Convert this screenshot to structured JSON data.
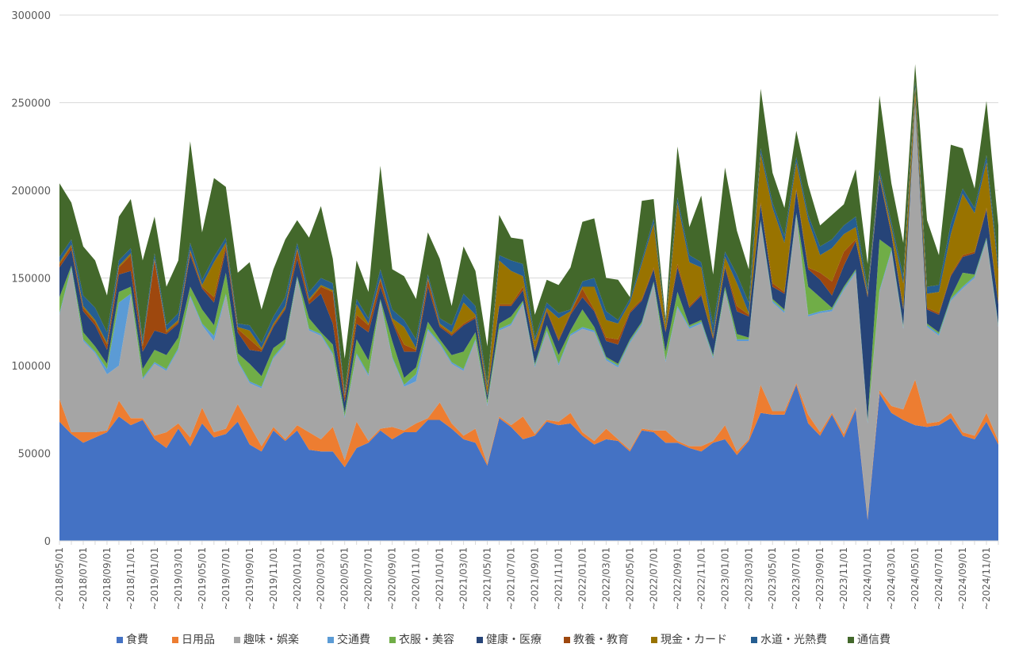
{
  "chart_data": {
    "type": "area",
    "stacked": true,
    "ylim": [
      0,
      300000
    ],
    "yticks": [
      "0",
      "50000",
      "100000",
      "150000",
      "200000",
      "250000",
      "300000"
    ],
    "xtick_labels": [
      "2018/05/01",
      "2018/07/01",
      "2018/09/01",
      "2018/11/01",
      "2019/01/01",
      "2019/03/01",
      "2019/05/01",
      "2019/07/01",
      "2019/09/01",
      "2019/11/01",
      "2020/01/01",
      "2020/03/01",
      "2020/05/01",
      "2020/07/01",
      "2020/09/01",
      "2020/11/01",
      "2021/01/01",
      "2021/03/01",
      "2021/05/01",
      "2021/07/01",
      "2021/09/01",
      "2021/11/01",
      "2022/01/01",
      "2022/03/01",
      "2022/05/01",
      "2022/07/01",
      "2022/09/01",
      "2022/11/01",
      "2023/01/01",
      "2023/03/01",
      "2023/05/01",
      "2023/07/01",
      "2023/09/01",
      "2023/11/01",
      "2024/01/01",
      "2024/03/01",
      "2024/05/01",
      "2024/07/01",
      "2024/09/01",
      "2024/11/01"
    ],
    "xtick_suffix": "~",
    "grid": true,
    "legend_position": "bottom",
    "series": [
      {
        "name": "食費",
        "color": "#4472C4",
        "values": [
          68000,
          61000,
          56000,
          59000,
          62000,
          71000,
          66000,
          69000,
          58000,
          53000,
          64000,
          54000,
          67000,
          59000,
          61000,
          68000,
          55000,
          51000,
          63000,
          57000,
          63000,
          52000,
          51000,
          51000,
          42000,
          53000,
          56000,
          63000,
          58000,
          62000,
          62000,
          69000,
          69000,
          64000,
          58000,
          56000,
          43000,
          70000,
          65000,
          58000,
          60000,
          68000,
          66000,
          67000,
          60000,
          55000,
          58000,
          57000,
          51000,
          63000,
          62000,
          56000,
          56000,
          53000,
          51000,
          56000,
          58000,
          49000,
          57000,
          73000,
          72000,
          72000,
          89000,
          67000,
          60000,
          72000,
          59000,
          75000,
          12000,
          84000,
          73000,
          69000,
          66000,
          65000,
          66000,
          70000,
          60000,
          58000,
          68000,
          55000
        ]
      },
      {
        "name": "日用品",
        "color": "#ED7D31",
        "values": [
          13000,
          1000,
          6000,
          3000,
          1000,
          9000,
          4000,
          1000,
          2000,
          9000,
          3000,
          5000,
          9000,
          3000,
          3000,
          10000,
          11000,
          3000,
          2000,
          1000,
          3000,
          10000,
          7000,
          14000,
          4000,
          15000,
          1000,
          1000,
          7000,
          1000,
          5000,
          1000,
          10000,
          3000,
          2000,
          8000,
          1000,
          1000,
          1000,
          13000,
          1000,
          1000,
          2000,
          6000,
          2000,
          2000,
          6000,
          1000,
          1000,
          1000,
          1000,
          7000,
          1000,
          1000,
          3000,
          1000,
          8000,
          2000,
          1000,
          16000,
          2000,
          2000,
          1000,
          5000,
          2000,
          1000,
          2000,
          1000,
          1000,
          2000,
          4000,
          6000,
          26000,
          2000,
          2000,
          3000,
          2000,
          2000,
          5000,
          2000
        ]
      },
      {
        "name": "趣味・娯楽",
        "color": "#A5A5A5",
        "values": [
          48000,
          93000,
          52000,
          45000,
          32000,
          20000,
          70000,
          22000,
          41000,
          35000,
          42000,
          80000,
          47000,
          52000,
          76000,
          24000,
          24000,
          33000,
          39000,
          54000,
          83000,
          58000,
          59000,
          41000,
          24000,
          38000,
          37000,
          72000,
          39000,
          25000,
          24000,
          50000,
          33000,
          34000,
          37000,
          50000,
          33000,
          49000,
          57000,
          64000,
          38000,
          50000,
          32000,
          44000,
          59000,
          62000,
          39000,
          41000,
          61000,
          59000,
          83000,
          39000,
          76000,
          67000,
          70000,
          47000,
          76000,
          63000,
          56000,
          92000,
          62000,
          56000,
          95000,
          56000,
          68000,
          58000,
          82000,
          77000,
          54000,
          56000,
          88000,
          46000,
          155000,
          55000,
          49000,
          64000,
          82000,
          90000,
          98000,
          65000
        ]
      },
      {
        "name": "交通費",
        "color": "#5B9BD5",
        "values": [
          1000,
          1000,
          1000,
          1000,
          3000,
          36000,
          1000,
          1000,
          1000,
          1000,
          1000,
          1000,
          1000,
          3000,
          1000,
          1000,
          1000,
          1000,
          1000,
          1000,
          1000,
          1000,
          1000,
          1000,
          1000,
          1000,
          1000,
          1000,
          1000,
          1000,
          4000,
          1000,
          1000,
          1000,
          1000,
          1000,
          1000,
          1000,
          1000,
          1000,
          1000,
          1000,
          1000,
          1000,
          1000,
          1000,
          1000,
          1000,
          1000,
          1000,
          1000,
          1000,
          1000,
          1000,
          1000,
          1000,
          1000,
          1000,
          1000,
          1000,
          1000,
          1000,
          1000,
          1000,
          1000,
          1000,
          1000,
          1000,
          1000,
          1000,
          1000,
          1000,
          1000,
          1000,
          1000,
          1000,
          1000,
          1000,
          1000,
          1000
        ]
      },
      {
        "name": "衣服・美容",
        "color": "#70AD47",
        "values": [
          9000,
          1000,
          4000,
          3000,
          3000,
          6000,
          4000,
          5000,
          7000,
          8000,
          6000,
          5000,
          8000,
          6000,
          12000,
          4000,
          10000,
          6000,
          5000,
          2000,
          1000,
          6000,
          1000,
          5000,
          2000,
          8000,
          8000,
          1000,
          9000,
          4000,
          4000,
          4000,
          2000,
          4000,
          10000,
          4000,
          2000,
          3000,
          4000,
          1000,
          1000,
          3000,
          5000,
          2000,
          10000,
          2000,
          1000,
          1000,
          1000,
          1000,
          1000,
          5000,
          8000,
          1000,
          1000,
          1000,
          2000,
          3000,
          1000,
          1000,
          1000,
          1000,
          1000,
          16000,
          8000,
          1000,
          1000,
          1000,
          1000,
          29000,
          1000,
          1000,
          1000,
          1000,
          1000,
          1000,
          8000,
          1000,
          1000,
          1000
        ]
      },
      {
        "name": "健康・医療",
        "color": "#264478",
        "values": [
          17000,
          9000,
          12000,
          12000,
          8000,
          10000,
          9000,
          10000,
          11000,
          12000,
          8000,
          18000,
          12000,
          13000,
          13000,
          12000,
          8000,
          14000,
          12000,
          17000,
          10000,
          8000,
          22000,
          12000,
          6000,
          9000,
          16000,
          7000,
          11000,
          15000,
          9000,
          20000,
          7000,
          11000,
          15000,
          8000,
          3000,
          10000,
          6000,
          6000,
          7000,
          8000,
          8000,
          9000,
          7000,
          9000,
          9000,
          11000,
          15000,
          12000,
          7000,
          11000,
          14000,
          10000,
          14000,
          9000,
          11000,
          13000,
          12000,
          9000,
          7000,
          9000,
          13000,
          10000,
          10000,
          7000,
          12000,
          16000,
          70000,
          35000,
          8000,
          9000,
          3000,
          8000,
          10000,
          12000,
          9000,
          12000,
          16000,
          11000
        ]
      },
      {
        "name": "教養・教育",
        "color": "#9E480E",
        "values": [
          2000,
          2000,
          2000,
          2000,
          3000,
          4000,
          9000,
          3000,
          40000,
          1000,
          1000,
          2000,
          1000,
          3000,
          3000,
          2000,
          6000,
          1000,
          1000,
          1000,
          5000,
          2000,
          4000,
          18000,
          3000,
          5000,
          4000,
          4000,
          1000,
          4000,
          1000,
          4000,
          1000,
          1000,
          1000,
          1000,
          1000,
          1000,
          1000,
          2000,
          1000,
          1000,
          1000,
          1000,
          5000,
          1000,
          2000,
          3000,
          1000,
          1000,
          1000,
          1000,
          2000,
          1000,
          1000,
          1000,
          1000,
          3000,
          1000,
          1000,
          2000,
          1000,
          1000,
          1000,
          4000,
          8000,
          8000,
          1000,
          1000,
          1000,
          1000,
          1000,
          1000,
          1000,
          1000,
          1000,
          1000,
          1000,
          1000,
          1000
        ]
      },
      {
        "name": "現金・カード",
        "color": "#997300",
        "values": [
          1000,
          1000,
          1000,
          1000,
          1000,
          1000,
          1000,
          1000,
          1000,
          1000,
          1000,
          1000,
          1000,
          20000,
          1000,
          1000,
          5000,
          1000,
          1000,
          1000,
          1000,
          1000,
          1000,
          1000,
          1000,
          6000,
          1000,
          1000,
          1000,
          10000,
          1000,
          1000,
          1000,
          1000,
          12000,
          1000,
          4000,
          25000,
          19000,
          6000,
          5000,
          1000,
          12000,
          1000,
          1000,
          13000,
          10000,
          9000,
          5000,
          20000,
          25000,
          3000,
          35000,
          25000,
          15000,
          1000,
          5000,
          13000,
          1000,
          28000,
          43000,
          28000,
          15000,
          27000,
          10000,
          19000,
          10000,
          7000,
          1000,
          1000,
          3000,
          14000,
          6000,
          8000,
          12000,
          23000,
          35000,
          22000,
          26000,
          18000
        ]
      },
      {
        "name": "水道・光熱費",
        "color": "#255E91",
        "values": [
          3000,
          3000,
          6000,
          7000,
          6000,
          3000,
          3000,
          3000,
          3000,
          3000,
          4000,
          4000,
          3000,
          3000,
          3000,
          2000,
          3000,
          3000,
          4000,
          5000,
          3000,
          4000,
          4000,
          4000,
          2000,
          3000,
          3000,
          5000,
          5000,
          4000,
          5000,
          2000,
          3000,
          4000,
          5000,
          5000,
          2000,
          3000,
          6000,
          7000,
          2000,
          3000,
          3000,
          1000,
          3000,
          5000,
          5000,
          2000,
          2000,
          2000,
          3000,
          2000,
          3000,
          4000,
          3000,
          6000,
          3000,
          5000,
          6000,
          3000,
          3000,
          4000,
          3000,
          3000,
          5000,
          5000,
          5000,
          6000,
          3000,
          3000,
          3000,
          4000,
          3000,
          4000,
          4000,
          6000,
          3000,
          3000,
          4000,
          4000
        ]
      },
      {
        "name": "通信費",
        "color": "#43682B",
        "values": [
          42000,
          21000,
          28000,
          27000,
          21000,
          25000,
          28000,
          45000,
          21000,
          22000,
          30000,
          58000,
          27000,
          45000,
          29000,
          29000,
          36000,
          19000,
          27000,
          33000,
          13000,
          31000,
          41000,
          14000,
          19000,
          22000,
          15000,
          59000,
          23000,
          25000,
          23000,
          24000,
          34000,
          11000,
          27000,
          20000,
          21000,
          23000,
          13000,
          14000,
          13000,
          13000,
          16000,
          24000,
          34000,
          34000,
          19000,
          23000,
          1000,
          34000,
          11000,
          2000,
          29000,
          16000,
          38000,
          29000,
          48000,
          25000,
          19000,
          34000,
          17000,
          16000,
          15000,
          17000,
          12000,
          14000,
          12000,
          27000,
          14000,
          42000,
          22000,
          19000,
          10000,
          38000,
          17000,
          45000,
          23000,
          11000,
          31000,
          22000
        ]
      }
    ]
  }
}
